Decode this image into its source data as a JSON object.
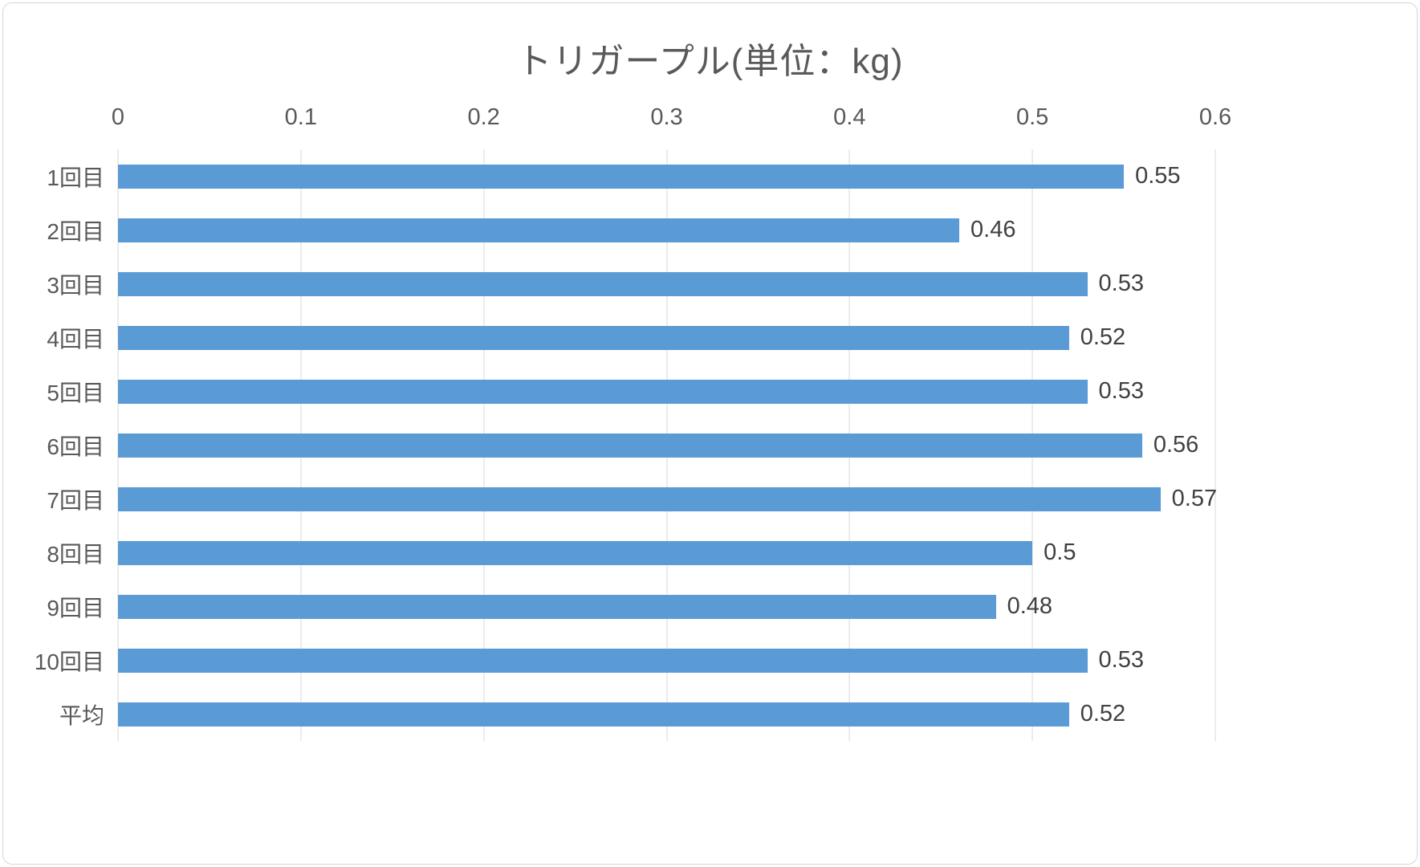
{
  "title": "トリガープル(単位：kg)",
  "chart_data": {
    "type": "bar",
    "orientation": "horizontal",
    "title": "トリガープル(単位：kg)",
    "categories": [
      "1回目",
      "2回目",
      "3回目",
      "4回目",
      "5回目",
      "6回目",
      "7回目",
      "8回目",
      "9回目",
      "10回目",
      "平均"
    ],
    "values": [
      0.55,
      0.46,
      0.53,
      0.52,
      0.53,
      0.56,
      0.57,
      0.5,
      0.48,
      0.53,
      0.52
    ],
    "value_labels": [
      "0.55",
      "0.46",
      "0.53",
      "0.52",
      "0.53",
      "0.56",
      "0.57",
      "0.5",
      "0.48",
      "0.53",
      "0.52"
    ],
    "x_ticks": [
      "0",
      "0.1",
      "0.2",
      "0.3",
      "0.4",
      "0.5",
      "0.6"
    ],
    "xlim": [
      0,
      0.6
    ],
    "grid": true,
    "legend": "none",
    "axis_position": "top"
  },
  "colors": {
    "bar": "#5B9BD5",
    "grid": "#D9D9D9",
    "title_text": "#595959",
    "axis_text": "#595959",
    "category_text": "#595959",
    "value_text": "#404040",
    "border": "#D6D6D6",
    "background": "#FFFFFF"
  }
}
